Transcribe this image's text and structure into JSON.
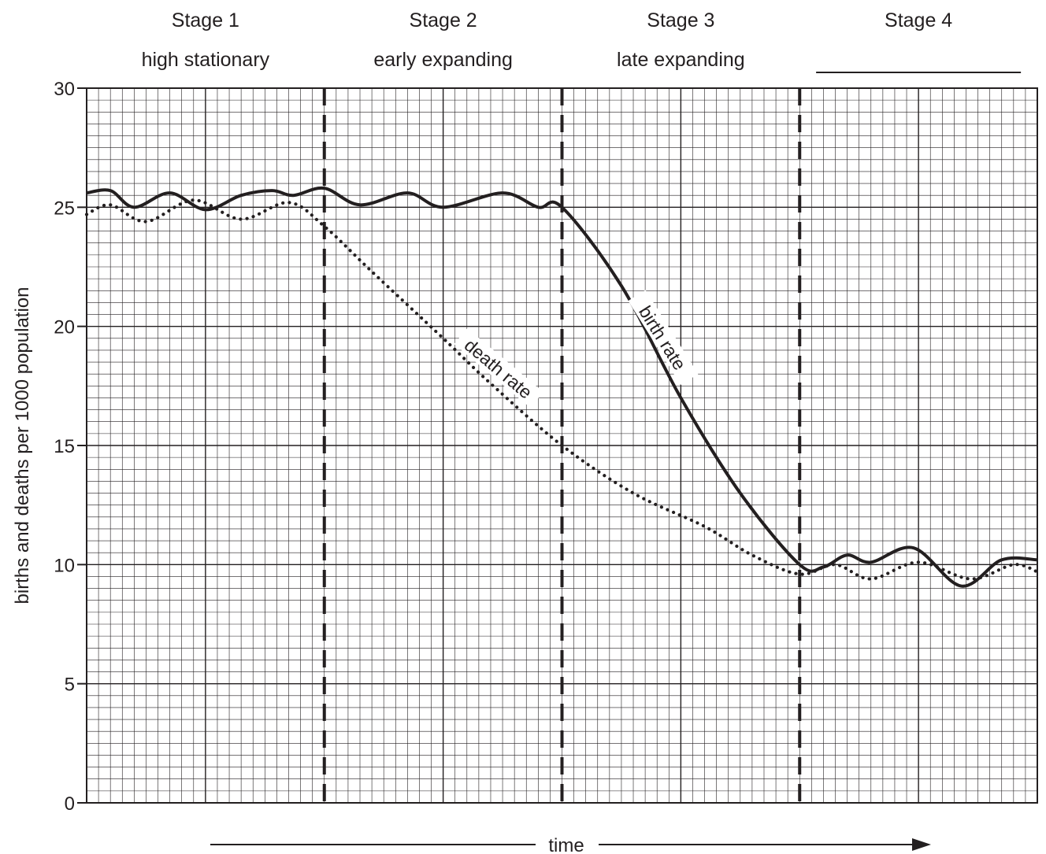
{
  "chart_data": {
    "type": "line",
    "title": "",
    "ylabel": "births and deaths per 1000 population",
    "xlabel": "time",
    "ylim": [
      0,
      30
    ],
    "yticks": [
      {
        "value": 30,
        "label": "30"
      },
      {
        "value": 25,
        "label": "25"
      },
      {
        "value": 20,
        "label": "20"
      },
      {
        "value": 15,
        "label": "15"
      },
      {
        "value": 10,
        "label": "10"
      },
      {
        "value": 5,
        "label": "5"
      },
      {
        "value": 0,
        "label": "0"
      }
    ],
    "grid": true,
    "stages": [
      {
        "name": "Stage 1",
        "description": "high stationary"
      },
      {
        "name": "Stage 2",
        "description": "early expanding"
      },
      {
        "name": "Stage 3",
        "description": "late expanding"
      },
      {
        "name": "Stage 4",
        "description": ""
      }
    ],
    "series": [
      {
        "name": "birth rate",
        "style": "solid",
        "points": [
          [
            0,
            25.6
          ],
          [
            0.1,
            25.7
          ],
          [
            0.2,
            25.0
          ],
          [
            0.35,
            25.6
          ],
          [
            0.5,
            24.9
          ],
          [
            0.65,
            25.5
          ],
          [
            0.78,
            25.7
          ],
          [
            0.87,
            25.5
          ],
          [
            1.0,
            25.8
          ],
          [
            1.15,
            25.1
          ],
          [
            1.35,
            25.6
          ],
          [
            1.5,
            25.0
          ],
          [
            1.75,
            25.6
          ],
          [
            1.9,
            25.0
          ],
          [
            2.0,
            25.0
          ],
          [
            2.25,
            21.7
          ],
          [
            2.5,
            17.0
          ],
          [
            2.75,
            13.0
          ],
          [
            3.0,
            10.0
          ],
          [
            3.1,
            9.9
          ],
          [
            3.2,
            10.4
          ],
          [
            3.3,
            10.1
          ],
          [
            3.48,
            10.7
          ],
          [
            3.68,
            9.1
          ],
          [
            3.85,
            10.2
          ],
          [
            4.0,
            10.2
          ]
        ]
      },
      {
        "name": "death rate",
        "style": "dotted",
        "points": [
          [
            0,
            24.7
          ],
          [
            0.1,
            25.1
          ],
          [
            0.25,
            24.4
          ],
          [
            0.45,
            25.3
          ],
          [
            0.65,
            24.5
          ],
          [
            0.85,
            25.2
          ],
          [
            1.0,
            24.2
          ],
          [
            1.2,
            22.3
          ],
          [
            1.5,
            19.5
          ],
          [
            1.7,
            17.6
          ],
          [
            2.0,
            15.0
          ],
          [
            2.3,
            13.0
          ],
          [
            2.6,
            11.6
          ],
          [
            2.8,
            10.4
          ],
          [
            3.0,
            9.6
          ],
          [
            3.15,
            10.0
          ],
          [
            3.3,
            9.4
          ],
          [
            3.5,
            10.1
          ],
          [
            3.72,
            9.4
          ],
          [
            3.9,
            10.0
          ],
          [
            4.0,
            9.7
          ]
        ]
      }
    ]
  }
}
